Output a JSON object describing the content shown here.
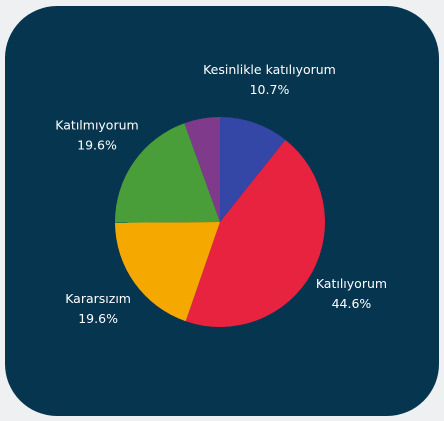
{
  "chart_data": {
    "type": "pie",
    "categories": [
      "Kesinlikle katılıyorum",
      "Katılıyorum",
      "Kararsızım",
      "Katılmıyorum",
      null
    ],
    "values": [
      10.7,
      44.6,
      19.6,
      19.6,
      5.5
    ],
    "value_labels": [
      "10.7%",
      "44.6%",
      "19.6%",
      "19.6%",
      null
    ],
    "colors": [
      "#3446a6",
      "#e8233f",
      "#f5a800",
      "#4a9e3a",
      "#7f3a8c"
    ]
  }
}
